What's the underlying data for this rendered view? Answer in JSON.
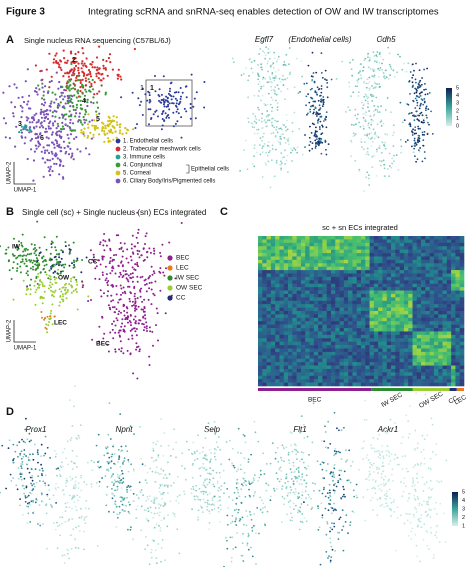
{
  "header": {
    "figure": "Figure 3",
    "title": "Integrating scRNA and snRNA-seq enables detection of OW and IW transcriptomes"
  },
  "panel_a": {
    "label": "A",
    "subtitle": "Single nucleus RNA sequencing (C57BL/6J)",
    "cluster_numbers": [
      "1",
      "2",
      "3",
      "4",
      "5",
      "6"
    ],
    "inset_label": "1",
    "legend": [
      "1. Endothelial cells",
      "2. Trabecular meshwork cells",
      "3. Immune cells",
      "4. Conjunctival",
      "5. Corneal",
      "6. Ciliary Body/Iris/Pigmented cells"
    ],
    "epithelial_bracket": "Epithelial cells",
    "y_axis": "UMAP-2",
    "x_axis": "UMAP-1",
    "genes": [
      "Egfl7",
      "Cdh5"
    ],
    "gene_note": "(Endothelial cells)",
    "colorbar_ticks": [
      "5",
      "4",
      "3",
      "2",
      "1",
      "0"
    ]
  },
  "panel_b": {
    "label": "B",
    "title": "Single cell (sc) + Single nucleus (sn) ECs integrated",
    "cluster_labels": [
      "IW",
      "CC",
      "OW",
      "LEC",
      "BEC"
    ],
    "legend": [
      "BEC",
      "LEC",
      "IW SEC",
      "OW SEC",
      "CC"
    ],
    "y_axis": "UMAP-2",
    "x_axis": "UMAP-1"
  },
  "panel_c": {
    "label": "C",
    "title": "sc + sn ECs integrated",
    "groups": [
      "BEC",
      "IW SEC",
      "OW SEC",
      "CC",
      "LEC"
    ]
  },
  "panel_d": {
    "label": "D",
    "genes": [
      "Prox1",
      "Npnt",
      "Selp",
      "Flt1",
      "Ackr1"
    ],
    "colorbar_ticks": [
      "5",
      "4",
      "3",
      "2",
      "1"
    ]
  }
}
